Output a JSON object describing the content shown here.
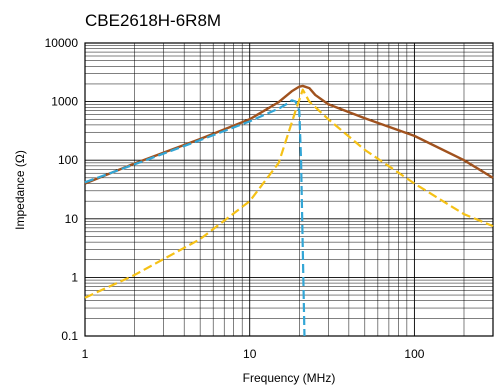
{
  "chart_data": {
    "type": "line",
    "title": "CBE2618H-6R8M",
    "xlabel": "Frequency (MHz)",
    "ylabel": "Impedance (Ω)",
    "x_scale": "log",
    "y_scale": "log",
    "xlim": [
      1,
      300
    ],
    "ylim": [
      0.1,
      10000
    ],
    "grid": true,
    "x_ticks": [
      {
        "value": 1,
        "label": "1"
      },
      {
        "value": 10,
        "label": "10"
      },
      {
        "value": 100,
        "label": "100"
      }
    ],
    "y_ticks": [
      {
        "value": 0.1,
        "label": "0.1"
      },
      {
        "value": 1,
        "label": "1"
      },
      {
        "value": 10,
        "label": "10"
      },
      {
        "value": 100,
        "label": "100"
      },
      {
        "value": 1000,
        "label": "1000"
      },
      {
        "value": 10000,
        "label": "10000"
      }
    ],
    "series": [
      {
        "color": "#a0521e",
        "style": "solid",
        "x": [
          1,
          2,
          5,
          10,
          15,
          18,
          20,
          21,
          23,
          25,
          30,
          50,
          100,
          200,
          300
        ],
        "y": [
          40,
          88,
          230,
          500,
          980,
          1500,
          1800,
          1850,
          1700,
          1300,
          900,
          520,
          260,
          100,
          50
        ]
      },
      {
        "color": "#33a6d6",
        "style": "dashed",
        "x": [
          1,
          2,
          5,
          10,
          15,
          17,
          18,
          19,
          20,
          20.5,
          21,
          21.5
        ],
        "y": [
          42,
          85,
          220,
          460,
          760,
          930,
          1050,
          1000,
          700,
          100,
          3,
          0.1
        ]
      },
      {
        "color": "#f5c116",
        "style": "dashed",
        "x": [
          1,
          2,
          5,
          10,
          15,
          19,
          21,
          23,
          30,
          50,
          100,
          200,
          300
        ],
        "y": [
          0.45,
          1.1,
          4.5,
          20,
          90,
          700,
          1600,
          1000,
          500,
          150,
          40,
          12,
          7.5
        ]
      }
    ]
  }
}
